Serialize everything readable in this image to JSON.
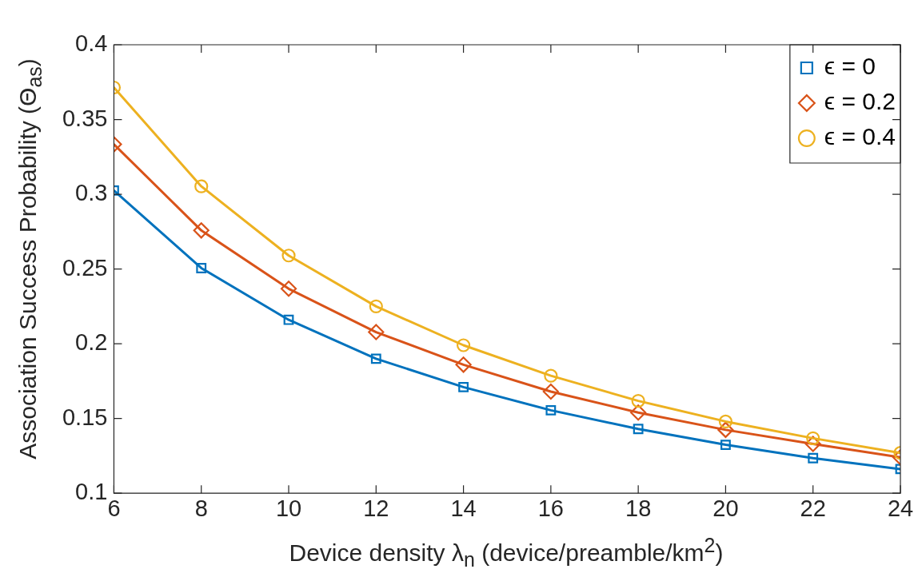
{
  "chart_data": {
    "type": "line",
    "xlabel": "Device density λ$_{n}$ (device/preamble/km$^{2}$)",
    "ylabel": "Association Success Probability (Θ$_{as}$)",
    "x": [
      6,
      8,
      10,
      12,
      14,
      16,
      18,
      20,
      22,
      24
    ],
    "series": [
      {
        "name": "ϵ = 0",
        "color": "#0072bd",
        "marker": "square",
        "values": [
          0.3025,
          0.2506,
          0.216,
          0.19,
          0.171,
          0.1555,
          0.143,
          0.1324,
          0.1235,
          0.1162
        ]
      },
      {
        "name": "ϵ = 0.2",
        "color": "#d95319",
        "marker": "diamond",
        "values": [
          0.3334,
          0.2758,
          0.2368,
          0.2078,
          0.186,
          0.168,
          0.154,
          0.1424,
          0.133,
          0.124
        ]
      },
      {
        "name": "ϵ = 0.4",
        "color": "#edb120",
        "marker": "circle",
        "values": [
          0.3714,
          0.3053,
          0.259,
          0.225,
          0.199,
          0.1786,
          0.1618,
          0.148,
          0.1368,
          0.127
        ]
      }
    ],
    "xlim": [
      6,
      24
    ],
    "xticks": [
      6,
      8,
      10,
      12,
      14,
      16,
      18,
      20,
      22,
      24
    ],
    "ylim": [
      0.1,
      0.4
    ],
    "yticks": [
      0.1,
      0.15,
      0.2,
      0.25,
      0.3,
      0.35,
      0.4
    ],
    "grid": false,
    "legend": "top right",
    "line_style": "solid"
  }
}
